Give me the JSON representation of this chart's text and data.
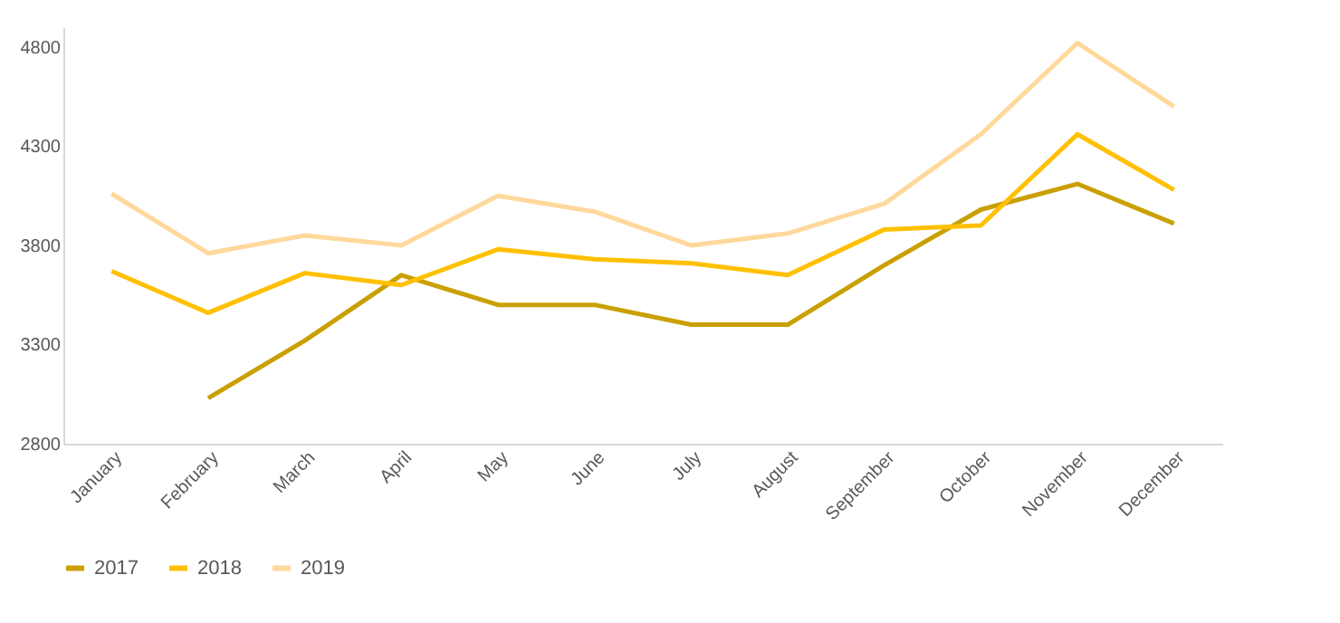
{
  "chart_data": {
    "type": "line",
    "categories": [
      "January",
      "February",
      "March",
      "April",
      "May",
      "June",
      "July",
      "August",
      "September",
      "October",
      "November",
      "December"
    ],
    "series": [
      {
        "name": "2017",
        "color": "#c9a000",
        "values": [
          null,
          3030,
          3320,
          3650,
          3500,
          3500,
          3400,
          3400,
          3700,
          3980,
          4110,
          3910
        ]
      },
      {
        "name": "2018",
        "color": "#ffc000",
        "values": [
          3670,
          3460,
          3660,
          3600,
          3780,
          3730,
          3710,
          3650,
          3880,
          3900,
          4360,
          4080
        ]
      },
      {
        "name": "2019",
        "color": "#ffd89b",
        "values": [
          4060,
          3760,
          3850,
          3800,
          4050,
          3970,
          3800,
          3860,
          4010,
          4360,
          4820,
          4500
        ]
      }
    ],
    "ylim": [
      2800,
      4900
    ],
    "yticks": [
      2800,
      3300,
      3800,
      4300,
      4800
    ],
    "grid": false,
    "legend": "bottom",
    "marker": "none",
    "line_style": "solid"
  }
}
